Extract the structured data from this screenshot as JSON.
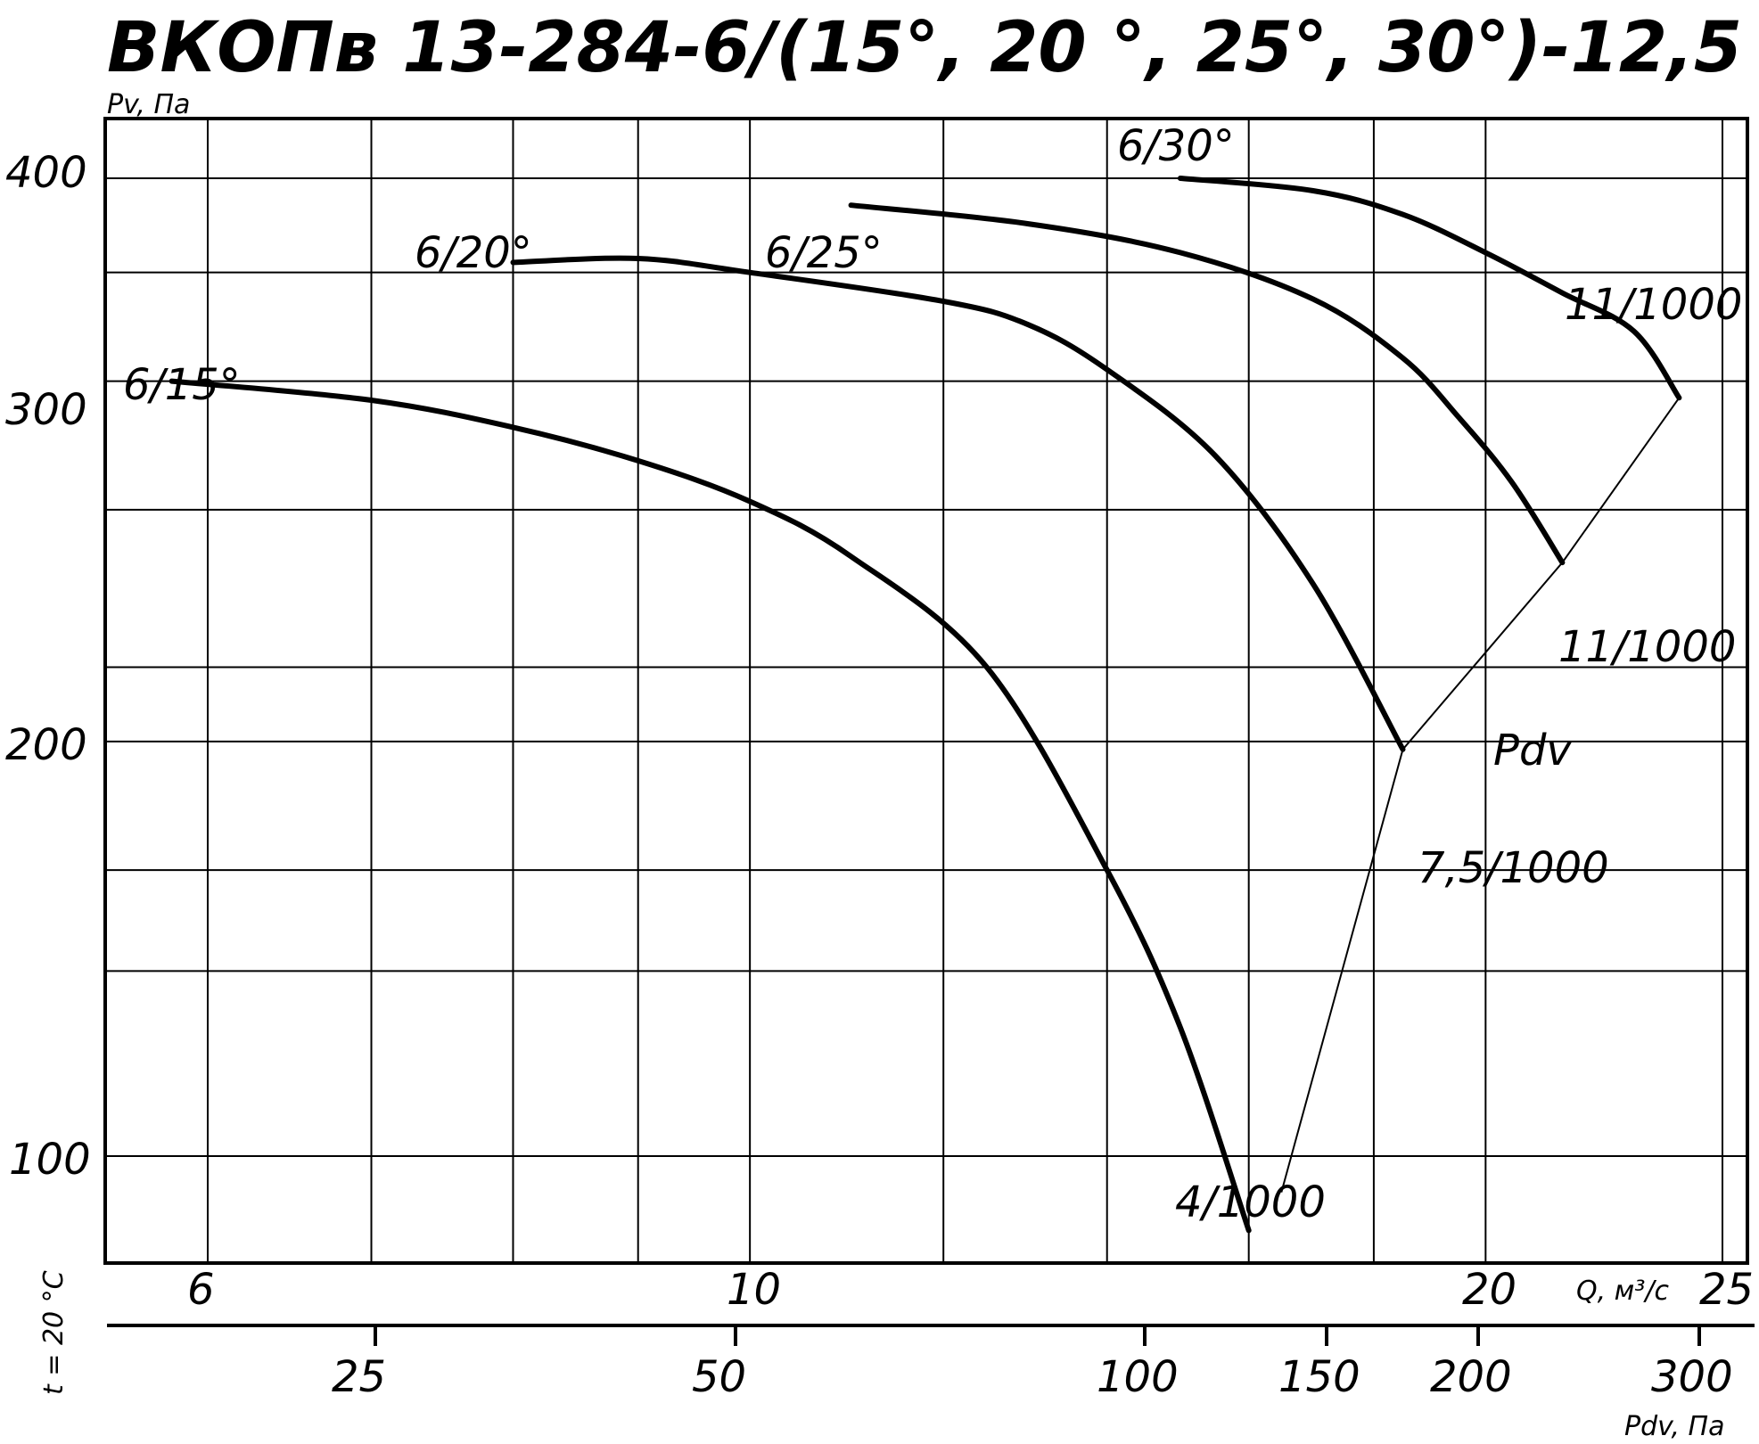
{
  "chart_data": {
    "type": "line",
    "title": "ВКОПв 13-284-6/(15°, 20 °, 25°, 30°)-12,5",
    "ylabel": "Pv, Па",
    "xlabel": "Q, м³/с",
    "x2label": "Pdv, Па",
    "side_label": "t = 20 °C",
    "y_scale": "log",
    "x_scale": "log",
    "ylim": [
      85,
      420
    ],
    "xlim": [
      5.5,
      25.3
    ],
    "y_ticks": [
      "100",
      "200",
      "300",
      "400"
    ],
    "x_ticks": [
      "6",
      "10",
      "20",
      "25"
    ],
    "x2_ticks": [
      "25",
      "50",
      "100",
      "150",
      "200",
      "300"
    ],
    "pdv_curve_label": "Pdv",
    "grid": true,
    "series": [
      {
        "name": "6/15°",
        "end_label": "4/1000",
        "points": [
          [
            5.8,
            300
          ],
          [
            7.0,
            292
          ],
          [
            8.0,
            281
          ],
          [
            9.0,
            268
          ],
          [
            10.0,
            253
          ],
          [
            11.0,
            234
          ],
          [
            12.5,
            200
          ],
          [
            14.0,
            150
          ],
          [
            15.0,
            120
          ],
          [
            16.0,
            90
          ]
        ]
      },
      {
        "name": "6/20°",
        "end_label": "7,5/1000",
        "points": [
          [
            8.0,
            355
          ],
          [
            9.0,
            357
          ],
          [
            10.0,
            350
          ],
          [
            12.0,
            336
          ],
          [
            13.0,
            325
          ],
          [
            14.0,
            305
          ],
          [
            15.5,
            270
          ],
          [
            17.0,
            225
          ],
          [
            18.5,
            178
          ]
        ]
      },
      {
        "name": "6/25°",
        "end_label": "11/1000",
        "points": [
          [
            11.0,
            385
          ],
          [
            13.0,
            375
          ],
          [
            15.0,
            360
          ],
          [
            17.0,
            337
          ],
          [
            18.5,
            310
          ],
          [
            19.5,
            285
          ],
          [
            20.5,
            260
          ],
          [
            21.5,
            232
          ]
        ]
      },
      {
        "name": "6/30°",
        "end_label": "11/1000",
        "points": [
          [
            15.0,
            400
          ],
          [
            17.0,
            393
          ],
          [
            18.5,
            380
          ],
          [
            20.0,
            360
          ],
          [
            21.5,
            340
          ],
          [
            23.0,
            322
          ],
          [
            24.0,
            293
          ]
        ]
      }
    ],
    "pdv_line": [
      [
        16.5,
        95
      ],
      [
        18.5,
        178
      ],
      [
        21.5,
        232
      ],
      [
        24.0,
        293
      ]
    ]
  }
}
